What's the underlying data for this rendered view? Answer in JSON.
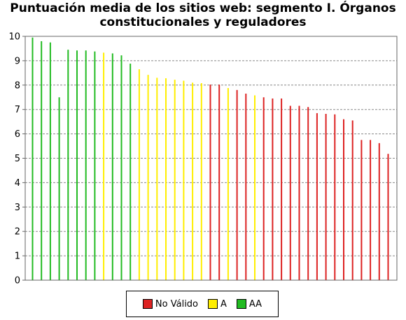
{
  "chart_data": {
    "type": "bar",
    "title_lines": [
      "Puntuación media de los sitios web: segmento I. Órganos",
      "constitucionales y reguladores"
    ],
    "xlabel": "",
    "ylabel": "",
    "ylim": [
      0,
      10
    ],
    "yticks": [
      "0",
      "1",
      "2",
      "3",
      "4",
      "5",
      "6",
      "7",
      "8",
      "9",
      "10"
    ],
    "grid": true,
    "legend": {
      "placement": "bottom",
      "entries": [
        {
          "label": "No Válido",
          "color": "#dd2222"
        },
        {
          "label": "A",
          "color": "#ffee00"
        },
        {
          "label": "AA",
          "color": "#22bb22"
        }
      ]
    },
    "bars": [
      {
        "value": 9.95,
        "level": "AA"
      },
      {
        "value": 9.8,
        "level": "AA"
      },
      {
        "value": 9.75,
        "level": "AA"
      },
      {
        "value": 7.5,
        "level": "AA"
      },
      {
        "value": 9.45,
        "level": "AA"
      },
      {
        "value": 9.42,
        "level": "AA"
      },
      {
        "value": 9.42,
        "level": "AA"
      },
      {
        "value": 9.38,
        "level": "AA"
      },
      {
        "value": 9.33,
        "level": "A"
      },
      {
        "value": 9.3,
        "level": "AA"
      },
      {
        "value": 9.22,
        "level": "AA"
      },
      {
        "value": 8.88,
        "level": "AA"
      },
      {
        "value": 8.65,
        "level": "A"
      },
      {
        "value": 8.42,
        "level": "A"
      },
      {
        "value": 8.3,
        "level": "A"
      },
      {
        "value": 8.28,
        "level": "A"
      },
      {
        "value": 8.22,
        "level": "A"
      },
      {
        "value": 8.18,
        "level": "A"
      },
      {
        "value": 8.1,
        "level": "A"
      },
      {
        "value": 8.08,
        "level": "A"
      },
      {
        "value": 8.02,
        "level": "No Válido"
      },
      {
        "value": 8.02,
        "level": "No Válido"
      },
      {
        "value": 7.88,
        "level": "A"
      },
      {
        "value": 7.8,
        "level": "No Válido"
      },
      {
        "value": 7.65,
        "level": "No Válido"
      },
      {
        "value": 7.58,
        "level": "A"
      },
      {
        "value": 7.5,
        "level": "No Válido"
      },
      {
        "value": 7.45,
        "level": "No Válido"
      },
      {
        "value": 7.45,
        "level": "No Válido"
      },
      {
        "value": 7.15,
        "level": "No Válido"
      },
      {
        "value": 7.15,
        "level": "No Válido"
      },
      {
        "value": 7.1,
        "level": "No Válido"
      },
      {
        "value": 6.85,
        "level": "No Válido"
      },
      {
        "value": 6.82,
        "level": "No Válido"
      },
      {
        "value": 6.8,
        "level": "No Válido"
      },
      {
        "value": 6.6,
        "level": "No Válido"
      },
      {
        "value": 6.55,
        "level": "No Válido"
      },
      {
        "value": 5.75,
        "level": "No Válido"
      },
      {
        "value": 5.75,
        "level": "No Válido"
      },
      {
        "value": 5.62,
        "level": "No Válido"
      },
      {
        "value": 5.18,
        "level": "No Válido"
      }
    ]
  }
}
